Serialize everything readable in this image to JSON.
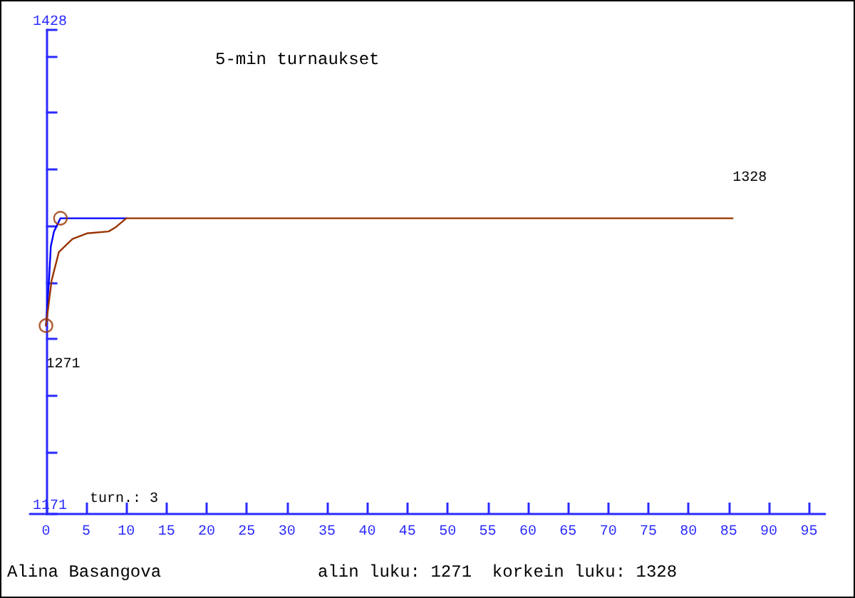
{
  "chart_data": {
    "type": "line",
    "title": "5-min turnaukset",
    "xlim": [
      -2,
      97
    ],
    "xticks": [
      0,
      5,
      10,
      15,
      20,
      25,
      30,
      35,
      40,
      45,
      50,
      55,
      60,
      65,
      70,
      75,
      80,
      85,
      90,
      95
    ],
    "ylim": [
      1171,
      1428
    ],
    "yticks": [
      1171,
      {
        "value": 1204,
        "label": null
      },
      {
        "value": 1234,
        "label": null
      },
      {
        "value": 1264,
        "label": null
      },
      {
        "value": 1294,
        "label": null
      },
      {
        "value": 1324,
        "label": null
      },
      {
        "value": 1354,
        "label": null
      },
      {
        "value": 1384,
        "label": null
      },
      {
        "value": 1414,
        "label": null
      },
      1428
    ],
    "grid": false,
    "marker": "none",
    "line_style": "solid",
    "series": [
      {
        "color": "#0000ff",
        "x": [
          0,
          0.1,
          0.4,
          0.6,
          1,
          1.8,
          10
        ],
        "values": [
          1271,
          1277,
          1297,
          1313,
          1321,
          1328,
          1328
        ]
      },
      {
        "color": "#993300",
        "x": [
          0,
          0.7,
          1.6,
          3.3,
          5.1,
          7.8,
          8.6,
          10,
          85.5
        ],
        "values": [
          1271,
          1295,
          1310,
          1317,
          1320,
          1321,
          1323,
          1328,
          1328
        ]
      },
      {
        "type": "scatter",
        "marker": "circle",
        "color": "#993300",
        "x": [
          0,
          1.8
        ],
        "values": [
          1271,
          1328
        ]
      }
    ],
    "annotations": [
      "turn.: 3",
      "Alina Basangova",
      "alin luku: 1271  korkein luku: 1328",
      {
        "text": "1271",
        "x": 0,
        "y": 1271
      },
      {
        "text": "1328",
        "x": 85.5,
        "y": 1328
      }
    ]
  }
}
